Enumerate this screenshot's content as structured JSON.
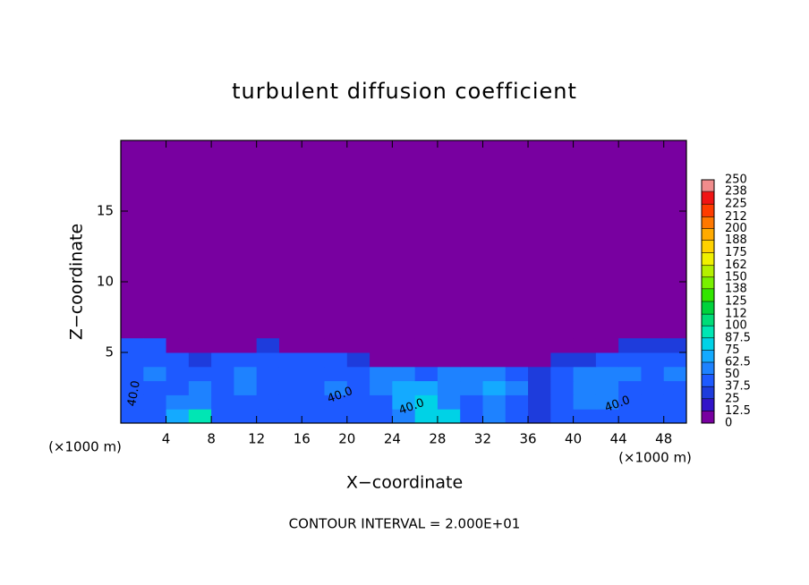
{
  "chart_data": {
    "type": "contour",
    "title": "turbulent diffusion coefficient",
    "xlabel": "X−coordinate",
    "ylabel": "Z−coordinate",
    "x_unit": "(×1000 m)",
    "note": "CONTOUR INTERVAL = 2.000E+01",
    "xlim": [
      0,
      50
    ],
    "ylim": [
      0,
      20
    ],
    "xticks": [
      4,
      8,
      12,
      16,
      20,
      24,
      28,
      32,
      36,
      40,
      44,
      48
    ],
    "yticks": [
      5,
      10,
      15
    ],
    "colorbar": {
      "levels": [
        0,
        12.5,
        25,
        37.5,
        50,
        62.5,
        75,
        87.5,
        100,
        112,
        125,
        138,
        150,
        162,
        175,
        188,
        200,
        212,
        225,
        238,
        250
      ],
      "colors": [
        "#7800a0",
        "#3214c8",
        "#1e3cdc",
        "#1e5aff",
        "#1e82ff",
        "#14aaff",
        "#00d2e6",
        "#00e6b4",
        "#00dc78",
        "#00d23c",
        "#32e600",
        "#78f000",
        "#b4f000",
        "#f0f000",
        "#ffd200",
        "#ffaa00",
        "#ff7800",
        "#ff3c00",
        "#f01414",
        "#f08c8c"
      ]
    },
    "field": {
      "x_edges": [
        0,
        2,
        4,
        6,
        8,
        10,
        12,
        14,
        16,
        18,
        20,
        22,
        24,
        26,
        28,
        30,
        32,
        34,
        36,
        38,
        40,
        42,
        44,
        46,
        48,
        50
      ],
      "z_edges": [
        0,
        1,
        2,
        3,
        4,
        5,
        6
      ],
      "values": [
        [
          40,
          45,
          70,
          90,
          45,
          40,
          40,
          45,
          40,
          45,
          40,
          45,
          60,
          80,
          85,
          45,
          50,
          40,
          30,
          40,
          45,
          40,
          40,
          40,
          45
        ],
        [
          45,
          40,
          50,
          60,
          45,
          40,
          45,
          45,
          40,
          45,
          40,
          40,
          70,
          75,
          60,
          45,
          50,
          45,
          35,
          40,
          55,
          50,
          40,
          45,
          45
        ],
        [
          45,
          45,
          40,
          55,
          45,
          50,
          45,
          40,
          45,
          50,
          45,
          50,
          70,
          65,
          55,
          50,
          65,
          50,
          35,
          40,
          55,
          50,
          45,
          45,
          45
        ],
        [
          45,
          50,
          40,
          45,
          45,
          50,
          45,
          40,
          40,
          45,
          45,
          55,
          60,
          45,
          50,
          55,
          60,
          45,
          30,
          40,
          50,
          55,
          50,
          45,
          50
        ],
        [
          45,
          45,
          40,
          30,
          40,
          45,
          45,
          40,
          40,
          45,
          30,
          0,
          0,
          0,
          0,
          0,
          0,
          0,
          0,
          25,
          30,
          40,
          45,
          45,
          45
        ],
        [
          40,
          40,
          0,
          0,
          0,
          0,
          30,
          0,
          0,
          0,
          0,
          0,
          0,
          0,
          0,
          0,
          0,
          0,
          0,
          0,
          0,
          0,
          25,
          25,
          25
        ]
      ]
    },
    "contour_labels": [
      "40.0",
      "40.0",
      "40.0",
      "40.0"
    ]
  }
}
